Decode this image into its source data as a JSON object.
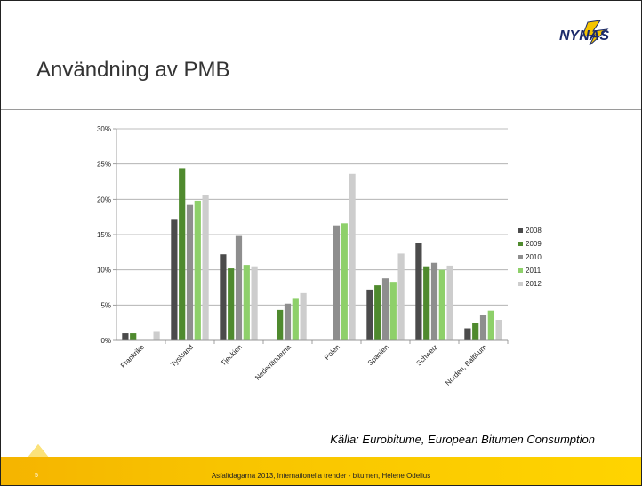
{
  "slide": {
    "title": "Användning av PMB",
    "logo_text": "NYNAS",
    "source": "Källa: Eurobitume, European Bitumen Consumption",
    "page_number": "5",
    "footer": "Asfaltdagarna 2013, Internationella trender - bitumen, Helene Odelius"
  },
  "colors": {
    "footer": "#f8c400",
    "logo_blue": "#1b2a6b",
    "logo_yellow": "#f5c400"
  },
  "chart_data": {
    "type": "bar",
    "categories": [
      "Frankrike",
      "Tyskland",
      "Tjeckien",
      "Nederländerna",
      "Polen",
      "Spanien",
      "Schweiz",
      "Norden, Baltikum"
    ],
    "series": [
      {
        "name": "2008",
        "color": "#4b4b4b",
        "values": [
          1.0,
          17.1,
          12.2,
          0.0,
          0.0,
          7.2,
          13.8,
          1.7
        ]
      },
      {
        "name": "2009",
        "color": "#4f8a2e",
        "values": [
          1.0,
          24.4,
          10.2,
          4.3,
          0.0,
          7.8,
          10.5,
          2.4
        ]
      },
      {
        "name": "2010",
        "color": "#8e8e8e",
        "values": [
          0.0,
          19.2,
          14.8,
          5.2,
          16.3,
          8.8,
          11.0,
          3.6
        ]
      },
      {
        "name": "2011",
        "color": "#8ed06a",
        "values": [
          0.0,
          19.8,
          10.7,
          6.0,
          16.6,
          8.3,
          10.0,
          4.2
        ]
      },
      {
        "name": "2012",
        "color": "#cdcdcd",
        "values": [
          1.2,
          20.6,
          10.5,
          6.7,
          23.6,
          12.3,
          10.6,
          2.9
        ]
      }
    ],
    "yticks": [
      "0%",
      "5%",
      "10%",
      "15%",
      "20%",
      "25%",
      "30%"
    ],
    "ylim": [
      0,
      30
    ],
    "grid": true,
    "legend": "right"
  }
}
